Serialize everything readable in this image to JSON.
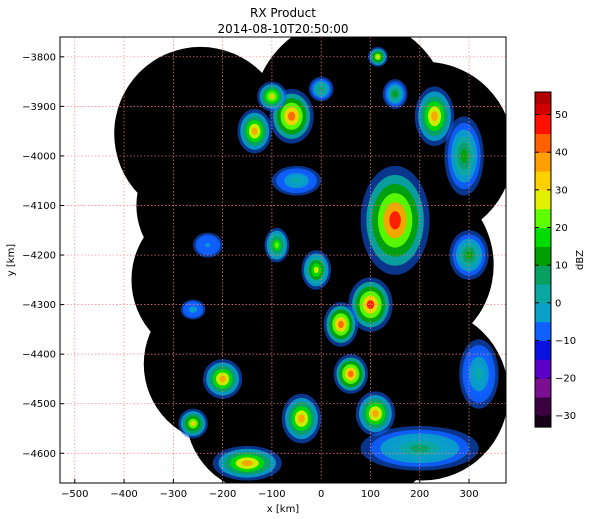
{
  "chart_data": {
    "type": "heatmap",
    "title": "RX Product",
    "subtitle": "2014-08-10T20:50:00",
    "xlabel": "x [km]",
    "ylabel": "y [km]",
    "xlim": [
      -530,
      375
    ],
    "ylim": [
      -4660,
      -3760
    ],
    "xticks": [
      -500,
      -400,
      -300,
      -200,
      -100,
      0,
      100,
      200,
      300
    ],
    "yticks": [
      -3800,
      -3900,
      -4000,
      -4100,
      -4200,
      -4300,
      -4400,
      -4500,
      -4600
    ],
    "grid": true,
    "colorbar": {
      "label": "dBZ",
      "range": [
        -33,
        56
      ],
      "ticks": [
        50,
        40,
        30,
        20,
        10,
        0,
        -10,
        -20,
        -30
      ]
    },
    "colors": {
      "background": "#000000",
      "grid": "#ff8080",
      "colormap": [
        [
          -33,
          "#140014"
        ],
        [
          -30,
          "#3a0040"
        ],
        [
          -25,
          "#7a1090"
        ],
        [
          -20,
          "#5a00c8"
        ],
        [
          -15,
          "#0a10e0"
        ],
        [
          -10,
          "#1060ff"
        ],
        [
          -5,
          "#0aa0c8"
        ],
        [
          0,
          "#0aa8a0"
        ],
        [
          5,
          "#08a060"
        ],
        [
          10,
          "#00a000"
        ],
        [
          15,
          "#00dc00"
        ],
        [
          20,
          "#60ff00"
        ],
        [
          25,
          "#e0f000"
        ],
        [
          30,
          "#ffd000"
        ],
        [
          35,
          "#ffa000"
        ],
        [
          40,
          "#ff6000"
        ],
        [
          45,
          "#ff1000"
        ],
        [
          50,
          "#d00000"
        ],
        [
          53,
          "#b00000"
        ],
        [
          56,
          "#e0a0a0"
        ]
      ]
    },
    "coverage_radars": [
      {
        "x": -245,
        "y": -3955,
        "r": 175
      },
      {
        "x": -230,
        "y": -4100,
        "r": 145
      },
      {
        "x": -225,
        "y": -4250,
        "r": 160
      },
      {
        "x": -200,
        "y": -4420,
        "r": 160
      },
      {
        "x": -115,
        "y": -4520,
        "r": 160
      },
      {
        "x": 50,
        "y": -4500,
        "r": 210
      },
      {
        "x": 205,
        "y": -4480,
        "r": 175
      },
      {
        "x": 60,
        "y": -3920,
        "r": 200
      },
      {
        "x": 210,
        "y": -3990,
        "r": 180
      },
      {
        "x": 170,
        "y": -4220,
        "r": 180
      },
      {
        "x": 10,
        "y": -4140,
        "r": 230
      },
      {
        "x": -80,
        "y": -4300,
        "r": 250
      }
    ],
    "echo_cells": [
      {
        "x": -60,
        "y": -3920,
        "rx": 45,
        "ry": 55,
        "peak": 40
      },
      {
        "x": -100,
        "y": -3880,
        "rx": 30,
        "ry": 30,
        "peak": 32
      },
      {
        "x": -135,
        "y": -3950,
        "rx": 35,
        "ry": 45,
        "peak": 35
      },
      {
        "x": 0,
        "y": -3865,
        "rx": 25,
        "ry": 25,
        "peak": 8
      },
      {
        "x": 150,
        "y": -3875,
        "rx": 25,
        "ry": 30,
        "peak": 10
      },
      {
        "x": 115,
        "y": -3800,
        "rx": 20,
        "ry": 20,
        "peak": 28
      },
      {
        "x": 230,
        "y": -3920,
        "rx": 40,
        "ry": 60,
        "peak": 38
      },
      {
        "x": 290,
        "y": -4000,
        "rx": 40,
        "ry": 80,
        "peak": 12
      },
      {
        "x": 150,
        "y": -4130,
        "rx": 70,
        "ry": 110,
        "peak": 47
      },
      {
        "x": 100,
        "y": -4300,
        "rx": 45,
        "ry": 55,
        "peak": 45
      },
      {
        "x": 40,
        "y": -4340,
        "rx": 35,
        "ry": 45,
        "peak": 40
      },
      {
        "x": 60,
        "y": -4440,
        "rx": 35,
        "ry": 40,
        "peak": 40
      },
      {
        "x": -40,
        "y": -4530,
        "rx": 40,
        "ry": 50,
        "peak": 38
      },
      {
        "x": 110,
        "y": -4520,
        "rx": 40,
        "ry": 45,
        "peak": 36
      },
      {
        "x": -150,
        "y": -4620,
        "rx": 70,
        "ry": 35,
        "peak": 35
      },
      {
        "x": -200,
        "y": -4450,
        "rx": 40,
        "ry": 40,
        "peak": 36
      },
      {
        "x": -260,
        "y": -4540,
        "rx": 30,
        "ry": 30,
        "peak": 30
      },
      {
        "x": -90,
        "y": -4180,
        "rx": 25,
        "ry": 35,
        "peak": 22
      },
      {
        "x": -230,
        "y": -4180,
        "rx": 30,
        "ry": 25,
        "peak": -5
      },
      {
        "x": -260,
        "y": -4310,
        "rx": 25,
        "ry": 20,
        "peak": -2
      },
      {
        "x": 200,
        "y": -4590,
        "rx": 120,
        "ry": 45,
        "peak": 5
      },
      {
        "x": 320,
        "y": -4440,
        "rx": 40,
        "ry": 70,
        "peak": 2
      },
      {
        "x": -50,
        "y": -4050,
        "rx": 50,
        "ry": 30,
        "peak": 0
      },
      {
        "x": 300,
        "y": -4200,
        "rx": 40,
        "ry": 50,
        "peak": 10
      },
      {
        "x": -10,
        "y": -4230,
        "rx": 30,
        "ry": 40,
        "peak": 25
      }
    ]
  }
}
